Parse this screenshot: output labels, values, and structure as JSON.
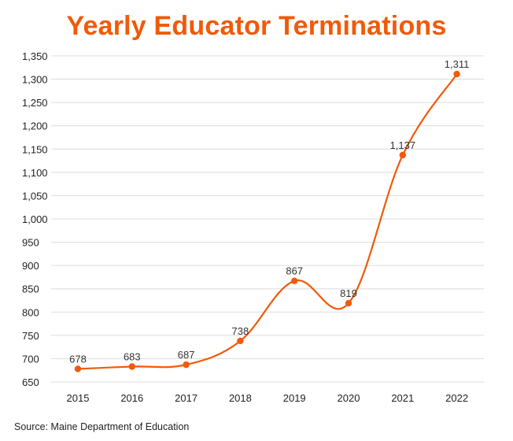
{
  "page": {
    "title": "Yearly Educator Terminations",
    "source": "Source: Maine Department of Education"
  },
  "colors": {
    "accent": "#f05a0a",
    "grid": "#dcdcdc",
    "text": "#222222"
  },
  "chart_data": {
    "type": "line",
    "title": "Yearly Educator Terminations",
    "xlabel": "",
    "ylabel": "",
    "categories": [
      "2015",
      "2016",
      "2017",
      "2018",
      "2019",
      "2020",
      "2021",
      "2022"
    ],
    "values": [
      678,
      683,
      687,
      738,
      867,
      819,
      1137,
      1311
    ],
    "value_labels": [
      "678",
      "683",
      "687",
      "738",
      "867",
      "819",
      "1,137",
      "1,311"
    ],
    "ylim": [
      650,
      1350
    ],
    "yticks": [
      650,
      700,
      750,
      800,
      850,
      900,
      950,
      1000,
      1050,
      1100,
      1150,
      1200,
      1250,
      1300,
      1350
    ],
    "ytick_labels": [
      "650",
      "700",
      "750",
      "800",
      "850",
      "900",
      "950",
      "1,000",
      "1,050",
      "1,100",
      "1,150",
      "1,200",
      "1,250",
      "1,300",
      "1,350"
    ],
    "grid": true,
    "legend": "none",
    "smooth": true
  }
}
